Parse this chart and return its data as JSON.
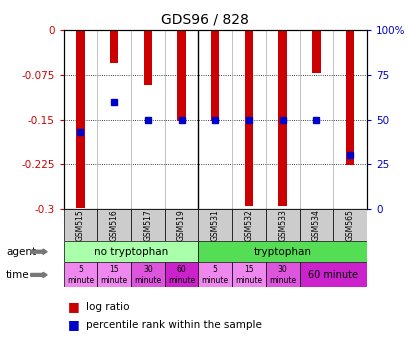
{
  "title": "GDS96 / 828",
  "samples": [
    "GSM515",
    "GSM516",
    "GSM517",
    "GSM519",
    "GSM531",
    "GSM532",
    "GSM533",
    "GSM534",
    "GSM565"
  ],
  "log_ratios": [
    -0.298,
    -0.055,
    -0.092,
    -0.153,
    -0.153,
    -0.295,
    -0.295,
    -0.072,
    -0.227
  ],
  "percentile_ranks": [
    43,
    60,
    50,
    50,
    50,
    50,
    50,
    50,
    30
  ],
  "bar_color": "#cc0000",
  "dot_color": "#0000cc",
  "ylim_left": [
    -0.3,
    0
  ],
  "ylim_right": [
    0,
    100
  ],
  "yticks_left": [
    0,
    -0.075,
    -0.15,
    -0.225,
    -0.3
  ],
  "yticks_right": [
    0,
    25,
    50,
    75,
    100
  ],
  "bg_color": "#ffffff",
  "left_label_color": "#cc0000",
  "right_label_color": "#0000cc",
  "agent_no_tryp_color": "#aaffaa",
  "agent_tryp_color": "#55dd55",
  "time_color_light": "#ee88ee",
  "time_color_mid": "#dd55dd",
  "time_color_dark": "#cc22cc",
  "xtick_bg": "#cccccc"
}
